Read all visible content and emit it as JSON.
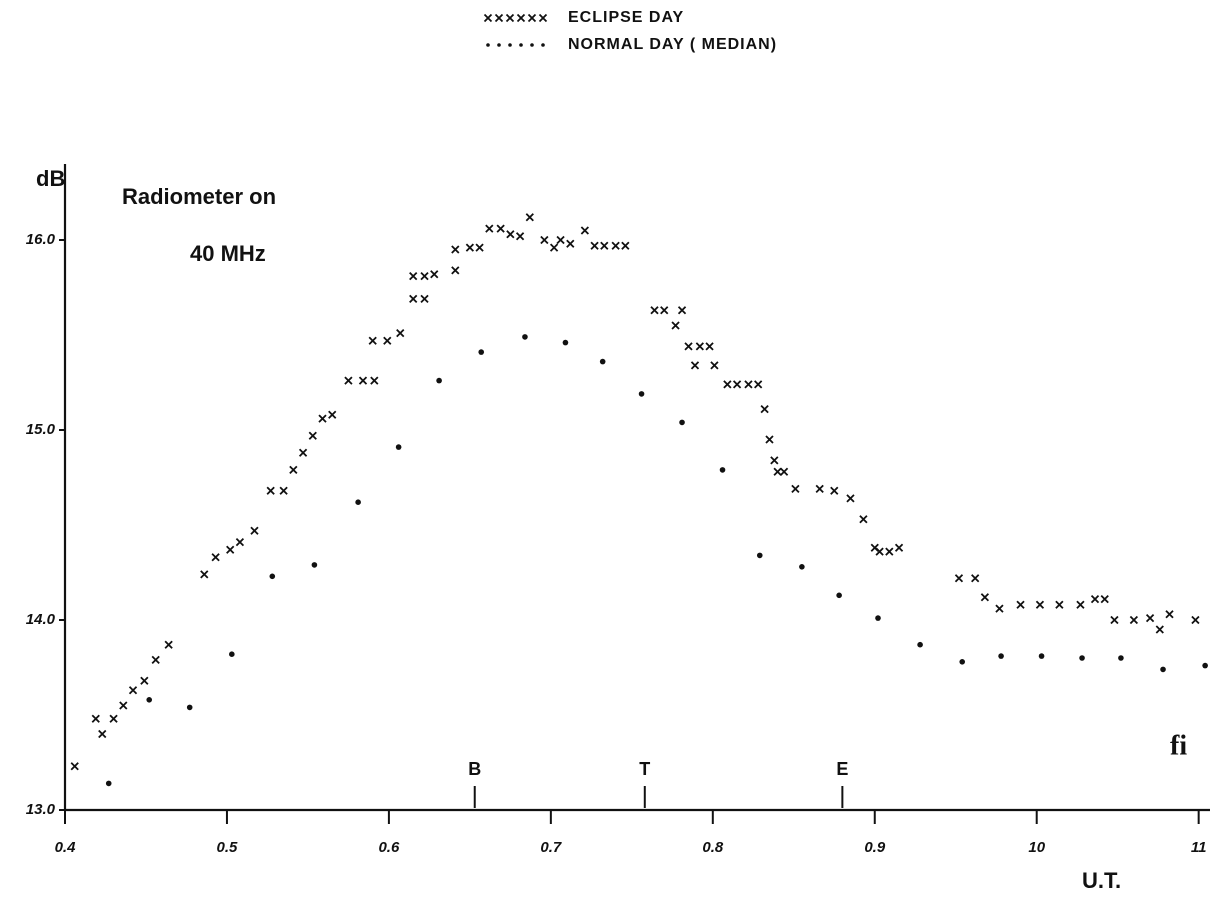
{
  "chart_data": {
    "type": "scatter",
    "x_label": "U.T.",
    "y_label": "dB",
    "annotations": [
      "Radiometer on",
      "40 MHz"
    ],
    "fig_label": "fi",
    "legend": "top",
    "xlim": [
      4,
      11.07
    ],
    "ylim": [
      13,
      16.4
    ],
    "xticks": [
      {
        "value": 4,
        "label": "0.4"
      },
      {
        "value": 5,
        "label": "0.5"
      },
      {
        "value": 6,
        "label": "0.6"
      },
      {
        "value": 7,
        "label": "0.7"
      },
      {
        "value": 8,
        "label": "0.8"
      },
      {
        "value": 9,
        "label": "0.9"
      },
      10,
      11
    ],
    "yticks": [
      {
        "value": 13,
        "label": "13.0"
      },
      {
        "value": 14,
        "label": "14.0"
      },
      {
        "value": 15,
        "label": "15.0"
      },
      {
        "value": 16,
        "label": "16.0"
      }
    ],
    "markers": [
      {
        "label": "B",
        "x": 6.53
      },
      {
        "label": "T",
        "x": 7.58
      },
      {
        "label": "E",
        "x": 8.8
      }
    ],
    "series": [
      {
        "name": "ECLIPSE DAY",
        "marker": "cross",
        "color": "#111111",
        "x": [
          4.06,
          4.19,
          4.23,
          4.3,
          4.36,
          4.42,
          4.49,
          4.56,
          4.64,
          4.86,
          4.93,
          5.02,
          5.08,
          5.17,
          5.27,
          5.35,
          5.41,
          5.47,
          5.53,
          5.59,
          5.65,
          5.75,
          5.84,
          5.91,
          5.9,
          5.99,
          6.07,
          6.15,
          6.22,
          6.15,
          6.22,
          6.28,
          6.41,
          6.41,
          6.5,
          6.56,
          6.62,
          6.69,
          6.75,
          6.81,
          6.87,
          6.96,
          7.02,
          7.06,
          7.12,
          7.21,
          7.27,
          7.33,
          7.4,
          7.46,
          7.64,
          7.7,
          7.77,
          7.81,
          7.85,
          7.92,
          7.98,
          7.89,
          8.01,
          8.09,
          8.15,
          8.22,
          8.28,
          8.32,
          8.35,
          8.38,
          8.4,
          8.44,
          8.51,
          8.66,
          8.75,
          8.85,
          8.93,
          9.0,
          9.03,
          9.09,
          9.15,
          9.52,
          9.62,
          9.68,
          9.77,
          9.9,
          10.02,
          10.14,
          10.27,
          10.36,
          10.42,
          10.48,
          10.6,
          10.7,
          10.76,
          10.82,
          10.98
        ],
        "values": [
          13.23,
          13.48,
          13.4,
          13.48,
          13.55,
          13.63,
          13.68,
          13.79,
          13.87,
          14.24,
          14.33,
          14.37,
          14.41,
          14.47,
          14.68,
          14.68,
          14.79,
          14.88,
          14.97,
          15.06,
          15.08,
          15.26,
          15.26,
          15.26,
          15.47,
          15.47,
          15.51,
          15.69,
          15.69,
          15.81,
          15.81,
          15.82,
          15.84,
          15.95,
          15.96,
          15.96,
          16.06,
          16.06,
          16.03,
          16.02,
          16.12,
          16.0,
          15.96,
          16.0,
          15.98,
          16.05,
          15.97,
          15.97,
          15.97,
          15.97,
          15.63,
          15.63,
          15.55,
          15.63,
          15.44,
          15.44,
          15.44,
          15.34,
          15.34,
          15.24,
          15.24,
          15.24,
          15.24,
          15.11,
          14.95,
          14.84,
          14.78,
          14.78,
          14.69,
          14.69,
          14.68,
          14.64,
          14.53,
          14.38,
          14.36,
          14.36,
          14.38,
          14.22,
          14.22,
          14.12,
          14.06,
          14.08,
          14.08,
          14.08,
          14.08,
          14.11,
          14.11,
          14.0,
          14.0,
          14.01,
          13.95,
          14.03,
          14.0
        ]
      },
      {
        "name": "NORMAL DAY ( MEDIAN)",
        "marker": "dot",
        "color": "#111111",
        "x": [
          4.27,
          4.52,
          4.77,
          5.03,
          5.28,
          5.54,
          5.81,
          6.06,
          6.31,
          6.57,
          6.84,
          7.09,
          7.32,
          7.56,
          7.81,
          8.06,
          8.29,
          8.55,
          8.78,
          9.02,
          9.28,
          9.54,
          9.78,
          10.03,
          10.28,
          10.52,
          10.78,
          11.04
        ],
        "values": [
          13.14,
          13.58,
          13.54,
          13.82,
          14.23,
          14.29,
          14.62,
          14.91,
          15.26,
          15.41,
          15.49,
          15.46,
          15.36,
          15.19,
          15.04,
          14.79,
          14.34,
          14.28,
          14.13,
          14.01,
          13.87,
          13.78,
          13.81,
          13.81,
          13.8,
          13.8,
          13.74,
          13.76
        ]
      }
    ]
  }
}
